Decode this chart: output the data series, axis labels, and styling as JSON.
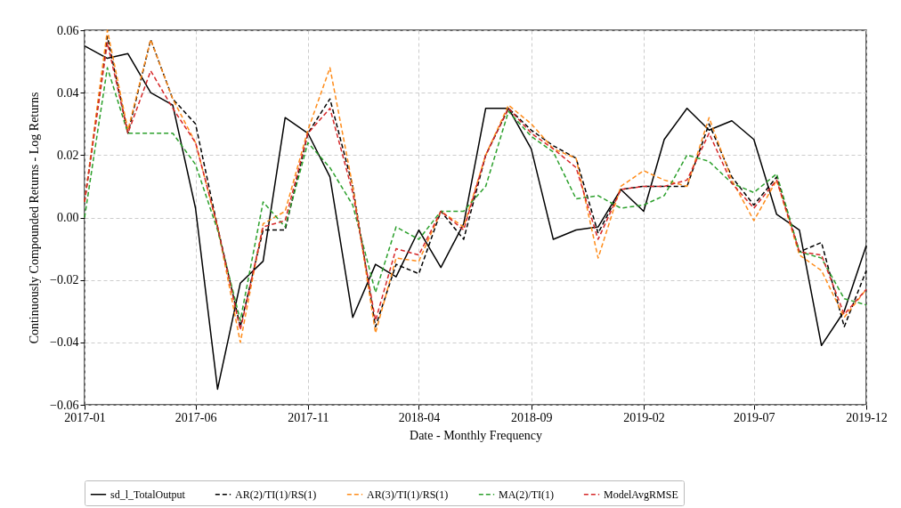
{
  "chart_data": {
    "type": "line",
    "xlabel": "Date - Monthly Frequency",
    "ylabel": "Continuously Compounded Returns - Log Returns",
    "x": [
      "2017-01",
      "2017-02",
      "2017-03",
      "2017-04",
      "2017-05",
      "2017-06",
      "2017-07",
      "2017-08",
      "2017-09",
      "2017-10",
      "2017-11",
      "2017-12",
      "2018-01",
      "2018-02",
      "2018-03",
      "2018-04",
      "2018-05",
      "2018-06",
      "2018-07",
      "2018-08",
      "2018-09",
      "2018-10",
      "2018-11",
      "2018-12",
      "2019-01",
      "2019-02",
      "2019-03",
      "2019-04",
      "2019-05",
      "2019-06",
      "2019-07",
      "2019-08",
      "2019-09",
      "2019-10",
      "2019-11",
      "2019-12"
    ],
    "series": [
      {
        "name": "sd_l_TotalOutput",
        "color": "#000000",
        "line_style": "solid",
        "values": [
          0.055,
          0.051,
          0.0525,
          0.04,
          0.036,
          0.003,
          -0.055,
          -0.021,
          -0.014,
          0.032,
          0.027,
          0.013,
          -0.032,
          -0.015,
          -0.019,
          -0.004,
          -0.016,
          -0.002,
          0.035,
          0.035,
          0.022,
          -0.007,
          -0.004,
          -0.003,
          0.009,
          0.002,
          0.025,
          0.035,
          0.028,
          0.031,
          0.025,
          0.001,
          -0.004,
          -0.041,
          -0.03,
          -0.009
        ]
      },
      {
        "name": "AR(2)/TI(1)/RS(1)",
        "color": "#000000",
        "line_style": "dashed",
        "values": [
          0.005,
          0.058,
          0.027,
          0.057,
          0.038,
          0.03,
          -0.003,
          -0.035,
          -0.004,
          -0.004,
          0.027,
          0.038,
          0.01,
          -0.035,
          -0.015,
          -0.018,
          0.002,
          -0.007,
          0.02,
          0.035,
          0.028,
          0.023,
          0.019,
          -0.005,
          0.009,
          0.01,
          0.01,
          0.01,
          0.03,
          0.013,
          0.004,
          0.013,
          -0.011,
          -0.008,
          -0.035,
          -0.017
        ]
      },
      {
        "name": "AR(3)/TI(1)/RS(1)",
        "color": "#ff8c1a",
        "line_style": "dashed",
        "values": [
          0.005,
          0.06,
          0.028,
          0.057,
          0.038,
          0.024,
          -0.003,
          -0.04,
          -0.002,
          0.002,
          0.028,
          0.048,
          0.01,
          -0.037,
          -0.013,
          -0.014,
          0.002,
          -0.003,
          0.02,
          0.036,
          0.03,
          0.022,
          0.019,
          -0.013,
          0.01,
          0.015,
          0.012,
          0.01,
          0.032,
          0.012,
          -0.001,
          0.012,
          -0.012,
          -0.017,
          -0.032,
          -0.023
        ]
      },
      {
        "name": "MA(2)/TI(1)",
        "color": "#2ca02c",
        "line_style": "dashed",
        "values": [
          0.0,
          0.048,
          0.027,
          0.027,
          0.027,
          0.017,
          -0.004,
          -0.033,
          0.005,
          -0.003,
          0.024,
          0.016,
          0.004,
          -0.024,
          -0.003,
          -0.007,
          0.002,
          0.002,
          0.01,
          0.034,
          0.026,
          0.021,
          0.006,
          0.007,
          0.003,
          0.004,
          0.007,
          0.02,
          0.018,
          0.011,
          0.008,
          0.014,
          -0.011,
          -0.013,
          -0.026,
          -0.028
        ]
      },
      {
        "name": "ModelAvgRMSE",
        "color": "#d62728",
        "line_style": "dashed",
        "values": [
          0.005,
          0.056,
          0.027,
          0.047,
          0.035,
          0.024,
          -0.003,
          -0.036,
          -0.003,
          -0.001,
          0.027,
          0.035,
          0.008,
          -0.033,
          -0.01,
          -0.012,
          0.002,
          -0.004,
          0.02,
          0.035,
          0.027,
          0.022,
          0.016,
          -0.007,
          0.009,
          0.01,
          0.01,
          0.012,
          0.027,
          0.011,
          0.003,
          0.012,
          -0.011,
          -0.012,
          -0.031,
          -0.023
        ]
      }
    ],
    "xlim": [
      "2017-01",
      "2019-12"
    ],
    "xticks": [
      "2017-01",
      "2017-06",
      "2017-11",
      "2018-04",
      "2018-09",
      "2019-02",
      "2019-07",
      "2019-12"
    ],
    "ylim": [
      -0.06,
      0.06
    ],
    "yticks": [
      {
        "value": -0.06,
        "label": "−0.06"
      },
      {
        "value": -0.04,
        "label": "−0.04"
      },
      {
        "value": -0.02,
        "label": "−0.02"
      },
      {
        "value": 0,
        "label": "0.00"
      },
      {
        "value": 0.02,
        "label": "0.02"
      },
      {
        "value": 0.04,
        "label": "0.04"
      },
      {
        "value": 0.06,
        "label": "0.06"
      }
    ],
    "grid": true,
    "legend": "bottom",
    "marker": "none"
  }
}
